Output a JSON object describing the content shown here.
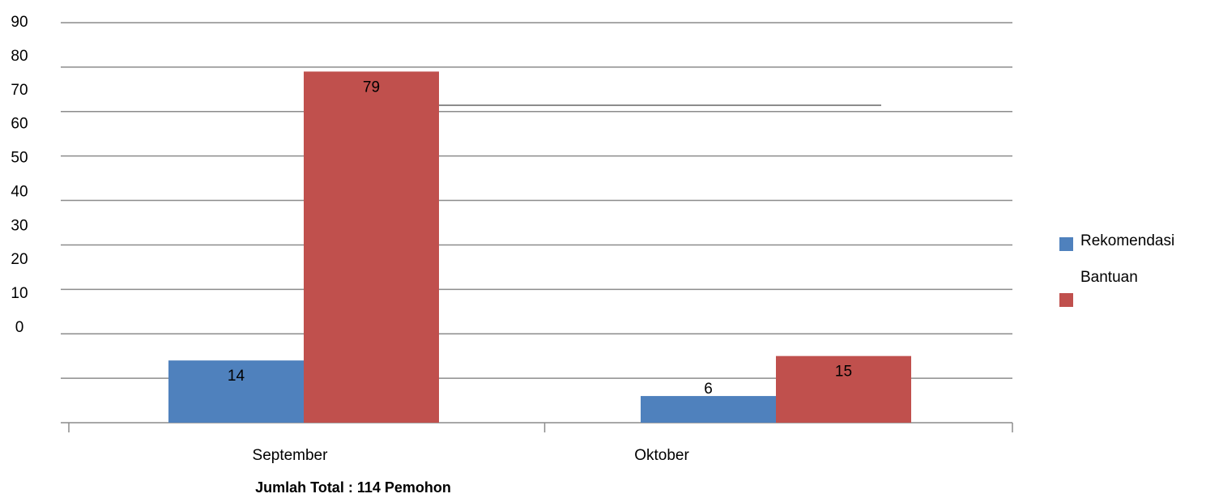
{
  "chart_data": {
    "type": "bar",
    "categories": [
      "September",
      "Oktober"
    ],
    "series": [
      {
        "name": "Rekomendasi",
        "color": "#4f81bd",
        "values": [
          14,
          6
        ]
      },
      {
        "name": "Bantuan",
        "color": "#c0504d",
        "values": [
          79,
          15
        ]
      }
    ],
    "ylim": [
      0,
      90
    ],
    "yticks": [
      0,
      10,
      20,
      30,
      40,
      50,
      60,
      70,
      80,
      90
    ],
    "grid": true,
    "legend": "right",
    "footnote": "Jumlah  Total : 114 Pemohon"
  }
}
